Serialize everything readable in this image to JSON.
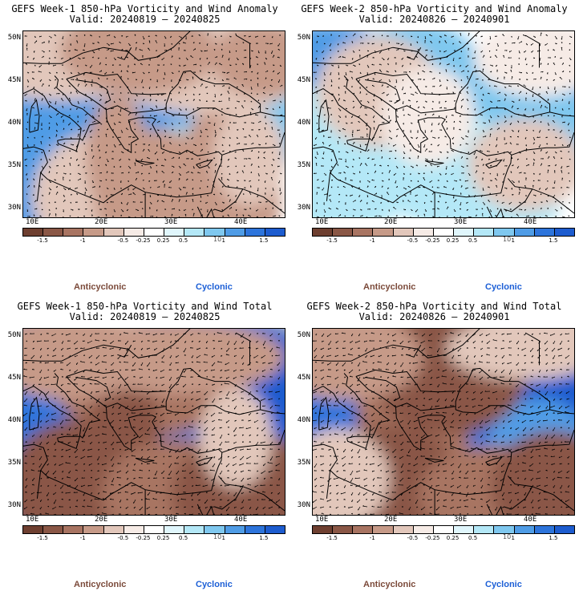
{
  "panels": [
    {
      "title": "GEFS Week-1 850-hPa Vorticity and Wind Anomaly",
      "valid": "Valid: 20240819 – 20240825",
      "kind": "anomaly"
    },
    {
      "title": "GEFS Week-2 850-hPa Vorticity and Wind Anomaly",
      "valid": "Valid: 20240826 – 20240901",
      "kind": "anomaly"
    },
    {
      "title": "GEFS Week-1 850-hPa Vorticity and Wind Total",
      "valid": "Valid: 20240819 – 20240825",
      "kind": "total"
    },
    {
      "title": "GEFS Week-2 850-hPa Vorticity and Wind Total",
      "valid": "Valid: 20240826 – 20240901",
      "kind": "total"
    }
  ],
  "axes": {
    "lat_labels": [
      "50N",
      "45N",
      "40N",
      "35N",
      "30N"
    ],
    "lon_labels": [
      "10E",
      "20E",
      "30E",
      "40E"
    ]
  },
  "colorbar": {
    "ticks": [
      "-1.5",
      "-1",
      "-0.5",
      "-0.25",
      "0.25",
      "0.5",
      "1",
      "1.5"
    ],
    "unit": "10",
    "colors": [
      "#6e3f30",
      "#8a5746",
      "#a87462",
      "#c69a88",
      "#e2c7bb",
      "#f6ebe6",
      "#ffffff",
      "#e0f6fc",
      "#b4e8f7",
      "#7fc8ef",
      "#4f9ce6",
      "#2d74db",
      "#1d5ccf"
    ]
  },
  "legend": {
    "anticyclonic": "Anticyclonic",
    "cyclonic": "Cyclonic"
  },
  "colors": {
    "anticyclonic": "#7b4a3a",
    "cyclonic": "#1c5fd6"
  }
}
